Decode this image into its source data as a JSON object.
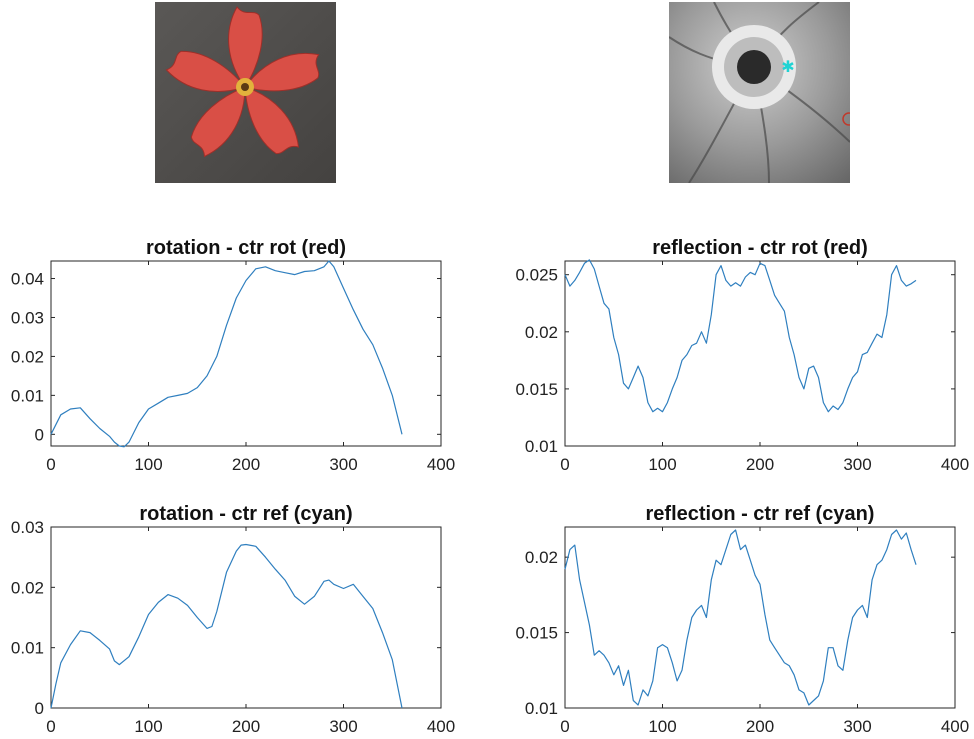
{
  "images": {
    "left": {
      "alt": "",
      "petal_color": "#d94f46",
      "background_color": "#4f4d4b"
    },
    "right": {
      "alt": "",
      "markers": [
        {
          "type": "star",
          "color": "#1fd3d3"
        },
        {
          "type": "circle",
          "color": "#c0392b"
        }
      ]
    }
  },
  "line_color": "#2f7fbf",
  "chart_data": [
    {
      "type": "line",
      "title": "rotation - ctr rot (red)",
      "xlabel": "",
      "ylabel": "",
      "xlim": [
        0,
        400
      ],
      "ylim": [
        -0.003,
        0.0445
      ],
      "xticks": [
        0,
        100,
        200,
        300,
        400
      ],
      "yticks": [
        0,
        0.01,
        0.02,
        0.03,
        0.04
      ],
      "yticklabels": [
        "0",
        "0.01",
        "0.02",
        "0.03",
        "0.04"
      ],
      "series": [
        {
          "x": [
            0,
            10,
            20,
            30,
            40,
            50,
            60,
            65,
            70,
            75,
            80,
            90,
            100,
            110,
            120,
            130,
            140,
            150,
            160,
            170,
            180,
            190,
            200,
            210,
            220,
            230,
            240,
            250,
            260,
            270,
            280,
            285,
            290,
            300,
            310,
            320,
            330,
            340,
            350,
            360
          ],
          "y": [
            0.0,
            0.005,
            0.0065,
            0.0068,
            0.004,
            0.0015,
            -0.0005,
            -0.002,
            -0.003,
            -0.0032,
            -0.002,
            0.003,
            0.0065,
            0.008,
            0.0095,
            0.01,
            0.0105,
            0.012,
            0.015,
            0.02,
            0.028,
            0.035,
            0.0395,
            0.0425,
            0.043,
            0.042,
            0.0415,
            0.041,
            0.0418,
            0.042,
            0.043,
            0.0445,
            0.043,
            0.0375,
            0.032,
            0.027,
            0.023,
            0.017,
            0.01,
            0.0
          ]
        }
      ]
    },
    {
      "type": "line",
      "title": "reflection - ctr rot (red)",
      "xlabel": "",
      "ylabel": "",
      "xlim": [
        0,
        400
      ],
      "ylim": [
        0.01,
        0.0262
      ],
      "xticks": [
        0,
        100,
        200,
        300,
        400
      ],
      "yticks": [
        0.01,
        0.015,
        0.02,
        0.025
      ],
      "yticklabels": [
        "0.01",
        "0.015",
        "0.02",
        "0.025"
      ],
      "series": [
        {
          "x": [
            0,
            5,
            10,
            15,
            20,
            25,
            30,
            35,
            40,
            45,
            50,
            55,
            60,
            65,
            70,
            75,
            80,
            85,
            90,
            95,
            100,
            105,
            110,
            115,
            120,
            125,
            130,
            135,
            140,
            145,
            150,
            155,
            160,
            165,
            170,
            175,
            180,
            185,
            190,
            195,
            200,
            205,
            210,
            215,
            220,
            225,
            230,
            235,
            240,
            245,
            250,
            255,
            260,
            265,
            270,
            275,
            280,
            285,
            290,
            295,
            300,
            305,
            310,
            315,
            320,
            325,
            330,
            335,
            340,
            345,
            350,
            355,
            360
          ],
          "y": [
            0.025,
            0.024,
            0.0245,
            0.0252,
            0.026,
            0.0263,
            0.0255,
            0.024,
            0.0225,
            0.022,
            0.0195,
            0.018,
            0.0155,
            0.015,
            0.016,
            0.017,
            0.016,
            0.0138,
            0.013,
            0.0133,
            0.013,
            0.0138,
            0.015,
            0.016,
            0.0175,
            0.018,
            0.0188,
            0.019,
            0.02,
            0.019,
            0.0215,
            0.025,
            0.0258,
            0.0245,
            0.024,
            0.0243,
            0.024,
            0.0248,
            0.0252,
            0.025,
            0.026,
            0.0258,
            0.0245,
            0.0232,
            0.0225,
            0.0218,
            0.0195,
            0.018,
            0.016,
            0.015,
            0.0168,
            0.017,
            0.016,
            0.0138,
            0.013,
            0.0135,
            0.0132,
            0.0138,
            0.015,
            0.016,
            0.0165,
            0.018,
            0.0182,
            0.019,
            0.0198,
            0.0195,
            0.0215,
            0.025,
            0.0258,
            0.0245,
            0.024,
            0.0242,
            0.0245
          ]
        }
      ]
    },
    {
      "type": "line",
      "title": "rotation - ctr ref (cyan)",
      "xlabel": "",
      "ylabel": "",
      "xlim": [
        0,
        400
      ],
      "ylim": [
        0,
        0.03
      ],
      "xticks": [
        0,
        100,
        200,
        300,
        400
      ],
      "yticks": [
        0,
        0.01,
        0.02,
        0.03
      ],
      "yticklabels": [
        "0",
        "0.01",
        "0.02",
        "0.03"
      ],
      "series": [
        {
          "x": [
            0,
            5,
            10,
            20,
            30,
            40,
            50,
            60,
            65,
            70,
            80,
            90,
            100,
            110,
            120,
            130,
            140,
            150,
            160,
            165,
            170,
            180,
            190,
            195,
            200,
            210,
            220,
            230,
            240,
            250,
            260,
            270,
            280,
            285,
            290,
            300,
            310,
            320,
            330,
            340,
            350,
            360
          ],
          "y": [
            0.0,
            0.004,
            0.0075,
            0.0105,
            0.0128,
            0.0125,
            0.0112,
            0.0098,
            0.0078,
            0.0072,
            0.0085,
            0.0118,
            0.0155,
            0.0175,
            0.0188,
            0.0182,
            0.017,
            0.015,
            0.0132,
            0.0135,
            0.016,
            0.0225,
            0.026,
            0.027,
            0.0271,
            0.0268,
            0.025,
            0.023,
            0.0212,
            0.0185,
            0.0172,
            0.0185,
            0.021,
            0.0212,
            0.0205,
            0.0198,
            0.0205,
            0.0185,
            0.0165,
            0.0125,
            0.008,
            0.0
          ]
        }
      ]
    },
    {
      "type": "line",
      "title": "reflection - ctr ref (cyan)",
      "xlabel": "",
      "ylabel": "",
      "xlim": [
        0,
        400
      ],
      "ylim": [
        0.01,
        0.022
      ],
      "xticks": [
        0,
        100,
        200,
        300,
        400
      ],
      "yticks": [
        0.01,
        0.015,
        0.02
      ],
      "yticklabels": [
        "0.01",
        "0.015",
        "0.02"
      ],
      "series": [
        {
          "x": [
            0,
            5,
            10,
            15,
            20,
            25,
            30,
            35,
            40,
            45,
            50,
            55,
            60,
            65,
            70,
            75,
            80,
            85,
            90,
            95,
            100,
            105,
            110,
            115,
            120,
            125,
            130,
            135,
            140,
            145,
            150,
            155,
            160,
            165,
            170,
            175,
            180,
            185,
            190,
            195,
            200,
            205,
            210,
            215,
            220,
            225,
            230,
            235,
            240,
            245,
            250,
            255,
            260,
            265,
            270,
            275,
            280,
            285,
            290,
            295,
            300,
            305,
            310,
            315,
            320,
            325,
            330,
            335,
            340,
            345,
            350,
            355,
            360
          ],
          "y": [
            0.0192,
            0.0205,
            0.0208,
            0.0185,
            0.017,
            0.0155,
            0.0135,
            0.0138,
            0.0135,
            0.013,
            0.0122,
            0.0128,
            0.0115,
            0.0125,
            0.0105,
            0.0102,
            0.0112,
            0.0108,
            0.0118,
            0.014,
            0.0142,
            0.014,
            0.013,
            0.0118,
            0.0125,
            0.0145,
            0.016,
            0.0165,
            0.0168,
            0.016,
            0.0185,
            0.0198,
            0.0195,
            0.0205,
            0.0215,
            0.0218,
            0.0205,
            0.0208,
            0.0198,
            0.0188,
            0.0182,
            0.0162,
            0.0145,
            0.014,
            0.0135,
            0.013,
            0.0128,
            0.0122,
            0.0112,
            0.011,
            0.0102,
            0.0105,
            0.0108,
            0.0118,
            0.014,
            0.014,
            0.0128,
            0.0125,
            0.0145,
            0.016,
            0.0165,
            0.0168,
            0.016,
            0.0185,
            0.0195,
            0.0198,
            0.0205,
            0.0215,
            0.0218,
            0.0212,
            0.0216,
            0.0205,
            0.0195
          ]
        }
      ]
    }
  ]
}
